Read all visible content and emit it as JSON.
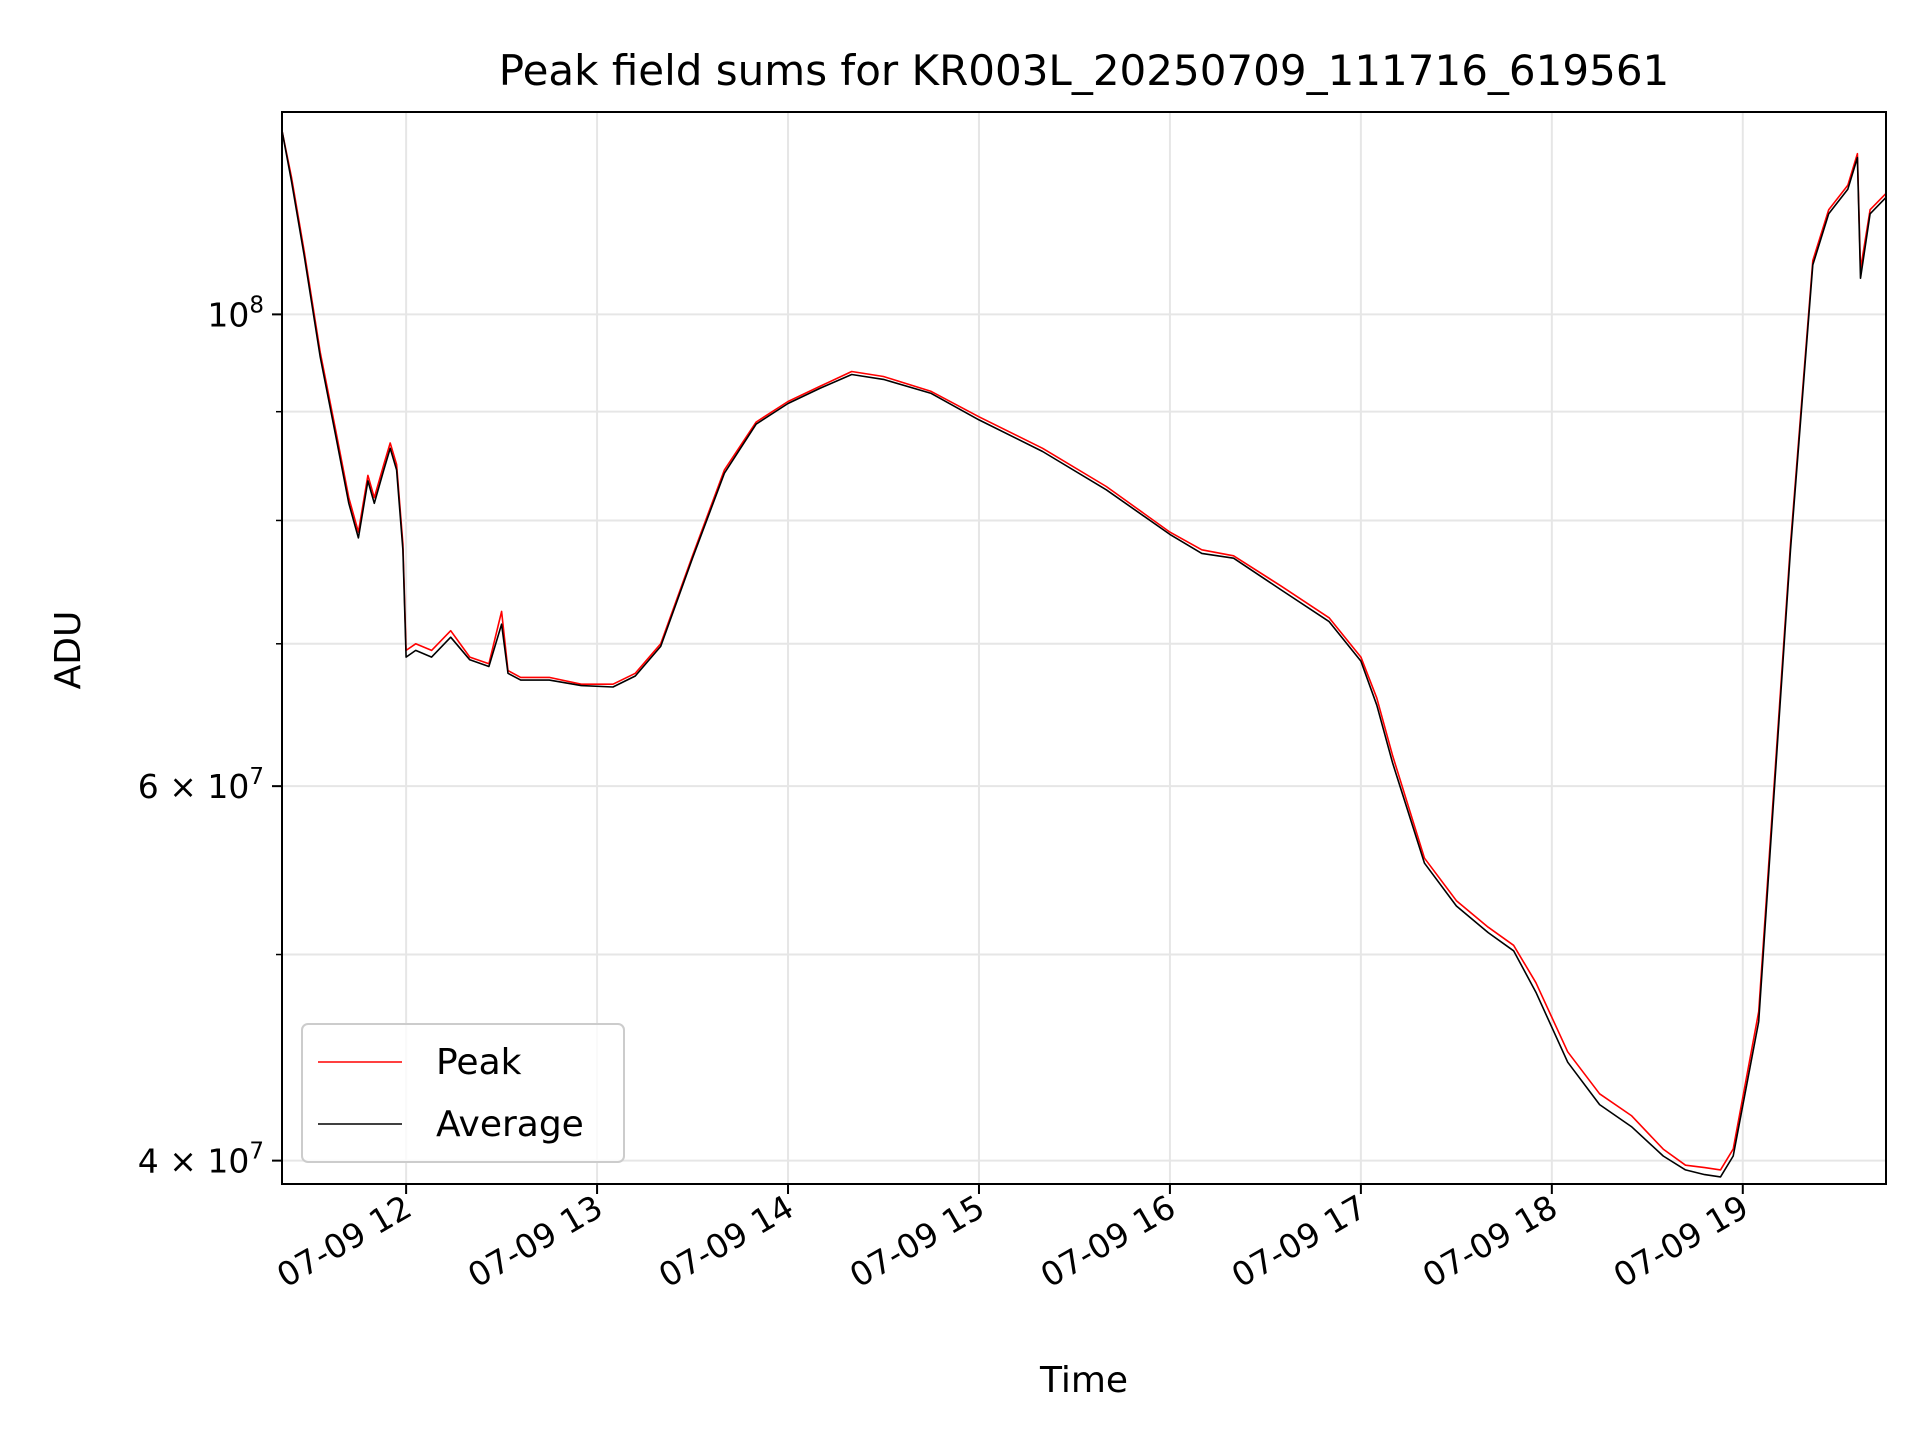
{
  "chart_data": {
    "type": "line",
    "title": "Peak field sums for KR003L_20250709_111716_619561",
    "xlabel": "Time",
    "ylabel": "ADU",
    "yscale": "log",
    "ylim": [
      39000000,
      124500000
    ],
    "xlim": [
      "07-09 11:21",
      "07-09 19:45"
    ],
    "grid": true,
    "legend_position": "lower-left",
    "x_tick_labels": [
      "07-09 12",
      "07-09 13",
      "07-09 14",
      "07-09 15",
      "07-09 16",
      "07-09 17",
      "07-09 18",
      "07-09 19"
    ],
    "y_tick_labels": [
      {
        "value": 40000000,
        "base": "4",
        "exp": "7"
      },
      {
        "value": 60000000,
        "base": "6",
        "exp": "7"
      },
      {
        "value": 100000000,
        "base": "",
        "exp": "8"
      }
    ],
    "y_minor_ticks": [
      50000000,
      70000000,
      80000000,
      90000000
    ],
    "series": [
      {
        "name": "Peak",
        "color": "#ff0000",
        "x": [
          "07-09 11:21",
          "07-09 11:24",
          "07-09 11:28",
          "07-09 11:33",
          "07-09 11:38",
          "07-09 11:42",
          "07-09 11:45",
          "07-09 11:48",
          "07-09 11:50",
          "07-09 11:53",
          "07-09 11:55",
          "07-09 11:57",
          "07-09 11:59",
          "07-09 12:00",
          "07-09 12:03",
          "07-09 12:08",
          "07-09 12:14",
          "07-09 12:20",
          "07-09 12:26",
          "07-09 12:30",
          "07-09 12:32",
          "07-09 12:36",
          "07-09 12:45",
          "07-09 12:55",
          "07-09 13:05",
          "07-09 13:12",
          "07-09 13:20",
          "07-09 13:30",
          "07-09 13:40",
          "07-09 13:50",
          "07-09 14:00",
          "07-09 14:10",
          "07-09 14:20",
          "07-09 14:30",
          "07-09 14:45",
          "07-09 15:00",
          "07-09 15:20",
          "07-09 15:40",
          "07-09 16:00",
          "07-09 16:10",
          "07-09 16:20",
          "07-09 16:35",
          "07-09 16:50",
          "07-09 17:00",
          "07-09 17:05",
          "07-09 17:10",
          "07-09 17:20",
          "07-09 17:30",
          "07-09 17:40",
          "07-09 17:48",
          "07-09 17:55",
          "07-09 18:05",
          "07-09 18:15",
          "07-09 18:25",
          "07-09 18:35",
          "07-09 18:42",
          "07-09 18:48",
          "07-09 18:53",
          "07-09 18:57",
          "07-09 19:05",
          "07-09 19:15",
          "07-09 19:22",
          "07-09 19:27",
          "07-09 19:33",
          "07-09 19:36",
          "07-09 19:37",
          "07-09 19:40",
          "07-09 19:45"
        ],
        "values": [
          122000000,
          116000000,
          107000000,
          96000000,
          88000000,
          82000000,
          79000000,
          84000000,
          82000000,
          85000000,
          87000000,
          85000000,
          78000000,
          69500000,
          70000000,
          69500000,
          71000000,
          69000000,
          68500000,
          72500000,
          68000000,
          67500000,
          67500000,
          67000000,
          67000000,
          67800000,
          70000000,
          77000000,
          84500000,
          89000000,
          91000000,
          92500000,
          94000000,
          93500000,
          92000000,
          89500000,
          86500000,
          83000000,
          79000000,
          77500000,
          77000000,
          74500000,
          72000000,
          69000000,
          66000000,
          62000000,
          55500000,
          53000000,
          51500000,
          50500000,
          48500000,
          45000000,
          43000000,
          42000000,
          40500000,
          39800000,
          39700000,
          39600000,
          40500000,
          47000000,
          78000000,
          106000000,
          112000000,
          115000000,
          119000000,
          105000000,
          112000000,
          114000000
        ]
      },
      {
        "name": "Average",
        "color": "#000000",
        "x": [
          "07-09 11:21",
          "07-09 11:24",
          "07-09 11:28",
          "07-09 11:33",
          "07-09 11:38",
          "07-09 11:42",
          "07-09 11:45",
          "07-09 11:48",
          "07-09 11:50",
          "07-09 11:53",
          "07-09 11:55",
          "07-09 11:57",
          "07-09 11:59",
          "07-09 12:00",
          "07-09 12:03",
          "07-09 12:08",
          "07-09 12:14",
          "07-09 12:20",
          "07-09 12:26",
          "07-09 12:30",
          "07-09 12:32",
          "07-09 12:36",
          "07-09 12:45",
          "07-09 12:55",
          "07-09 13:05",
          "07-09 13:12",
          "07-09 13:20",
          "07-09 13:30",
          "07-09 13:40",
          "07-09 13:50",
          "07-09 14:00",
          "07-09 14:10",
          "07-09 14:20",
          "07-09 14:30",
          "07-09 14:45",
          "07-09 15:00",
          "07-09 15:20",
          "07-09 15:40",
          "07-09 16:00",
          "07-09 16:10",
          "07-09 16:20",
          "07-09 16:35",
          "07-09 16:50",
          "07-09 17:00",
          "07-09 17:05",
          "07-09 17:10",
          "07-09 17:20",
          "07-09 17:30",
          "07-09 17:40",
          "07-09 17:48",
          "07-09 17:55",
          "07-09 18:05",
          "07-09 18:15",
          "07-09 18:25",
          "07-09 18:35",
          "07-09 18:42",
          "07-09 18:48",
          "07-09 18:53",
          "07-09 18:57",
          "07-09 19:05",
          "07-09 19:15",
          "07-09 19:22",
          "07-09 19:27",
          "07-09 19:33",
          "07-09 19:36",
          "07-09 19:37",
          "07-09 19:40",
          "07-09 19:45"
        ],
        "values": [
          122000000,
          115500000,
          106500000,
          95500000,
          87500000,
          81500000,
          78500000,
          83500000,
          81500000,
          84500000,
          86500000,
          84500000,
          77500000,
          69000000,
          69500000,
          69000000,
          70500000,
          68800000,
          68300000,
          71500000,
          67800000,
          67300000,
          67300000,
          66900000,
          66800000,
          67600000,
          69800000,
          76800000,
          84200000,
          88800000,
          90800000,
          92300000,
          93700000,
          93200000,
          91800000,
          89200000,
          86200000,
          82700000,
          78800000,
          77200000,
          76800000,
          74200000,
          71700000,
          68700000,
          65500000,
          61500000,
          55200000,
          52700000,
          51200000,
          50200000,
          48000000,
          44500000,
          42500000,
          41500000,
          40200000,
          39600000,
          39400000,
          39300000,
          40200000,
          46500000,
          77500000,
          105500000,
          111500000,
          114500000,
          118500000,
          104000000,
          111500000,
          113500000
        ]
      }
    ]
  }
}
